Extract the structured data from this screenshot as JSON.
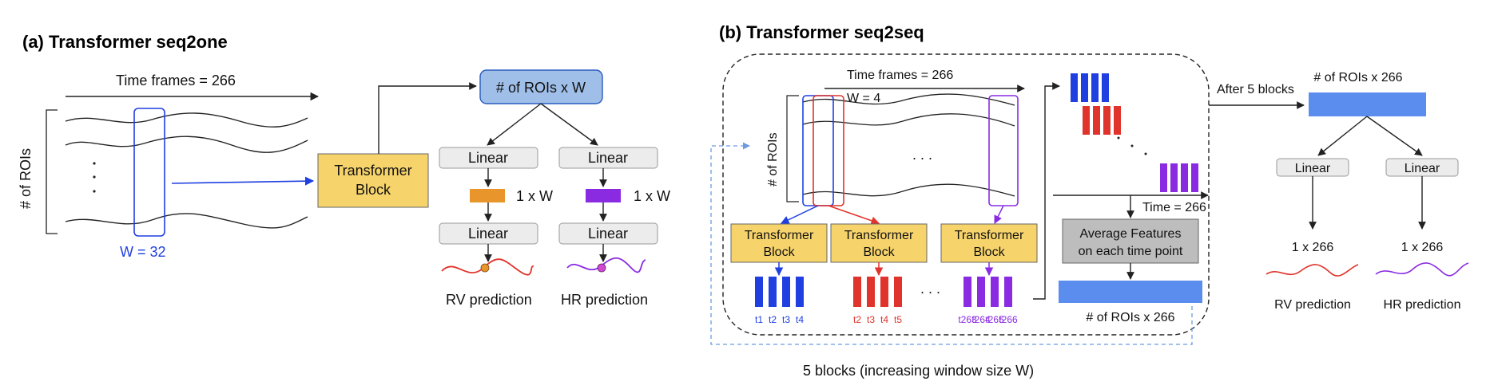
{
  "panel_a": {
    "title": "(a) Transformer seq2one",
    "time_label": "Time frames = 266",
    "roi_label": "# of ROIs",
    "window_label": "W = 32",
    "ellipsis": ". . .",
    "transformer": "Transformer",
    "block": "Block",
    "rois_x_w": "# of ROIs x W",
    "linear": "Linear",
    "one_x_w": "1 x W",
    "rv_prediction": "RV prediction",
    "hr_prediction": "HR prediction"
  },
  "panel_b": {
    "title": "(b) Transformer seq2seq",
    "time_label": "Time frames = 266",
    "window_label": "W = 4",
    "roi_label": "# of ROIs",
    "ellipsis": ". . .",
    "transformer": "Transformer",
    "block": "Block",
    "ticks_blue": [
      "t1",
      "t2",
      "t3",
      "t4"
    ],
    "ticks_red": [
      "t2",
      "t3",
      "t4",
      "t5"
    ],
    "ticks_purple": [
      "t263",
      "t264",
      "t265",
      "t266"
    ],
    "time_end": "Time = 266",
    "average_line1": "Average Features",
    "average_line2": "on each time point",
    "rois_x_266": "# of ROIs x 266",
    "after_blocks": "After 5 blocks",
    "top_rois_x_266": "# of ROIs x 266",
    "linear": "Linear",
    "one_x_266": "1 x 266",
    "rv_prediction": "RV prediction",
    "hr_prediction": "HR prediction",
    "bottom_caption": "5 blocks (increasing window size W)"
  },
  "colors": {
    "blue": "#1f3fe0",
    "red": "#e0332b",
    "purple": "#8a2be2",
    "orange": "#e8962c",
    "transformer_fill": "#f7d46b",
    "linear_fill": "#ececec",
    "bar_fill": "#5b8def",
    "top_box_fill": "#9fbfe8",
    "avg_fill": "#bdbdbd"
  }
}
